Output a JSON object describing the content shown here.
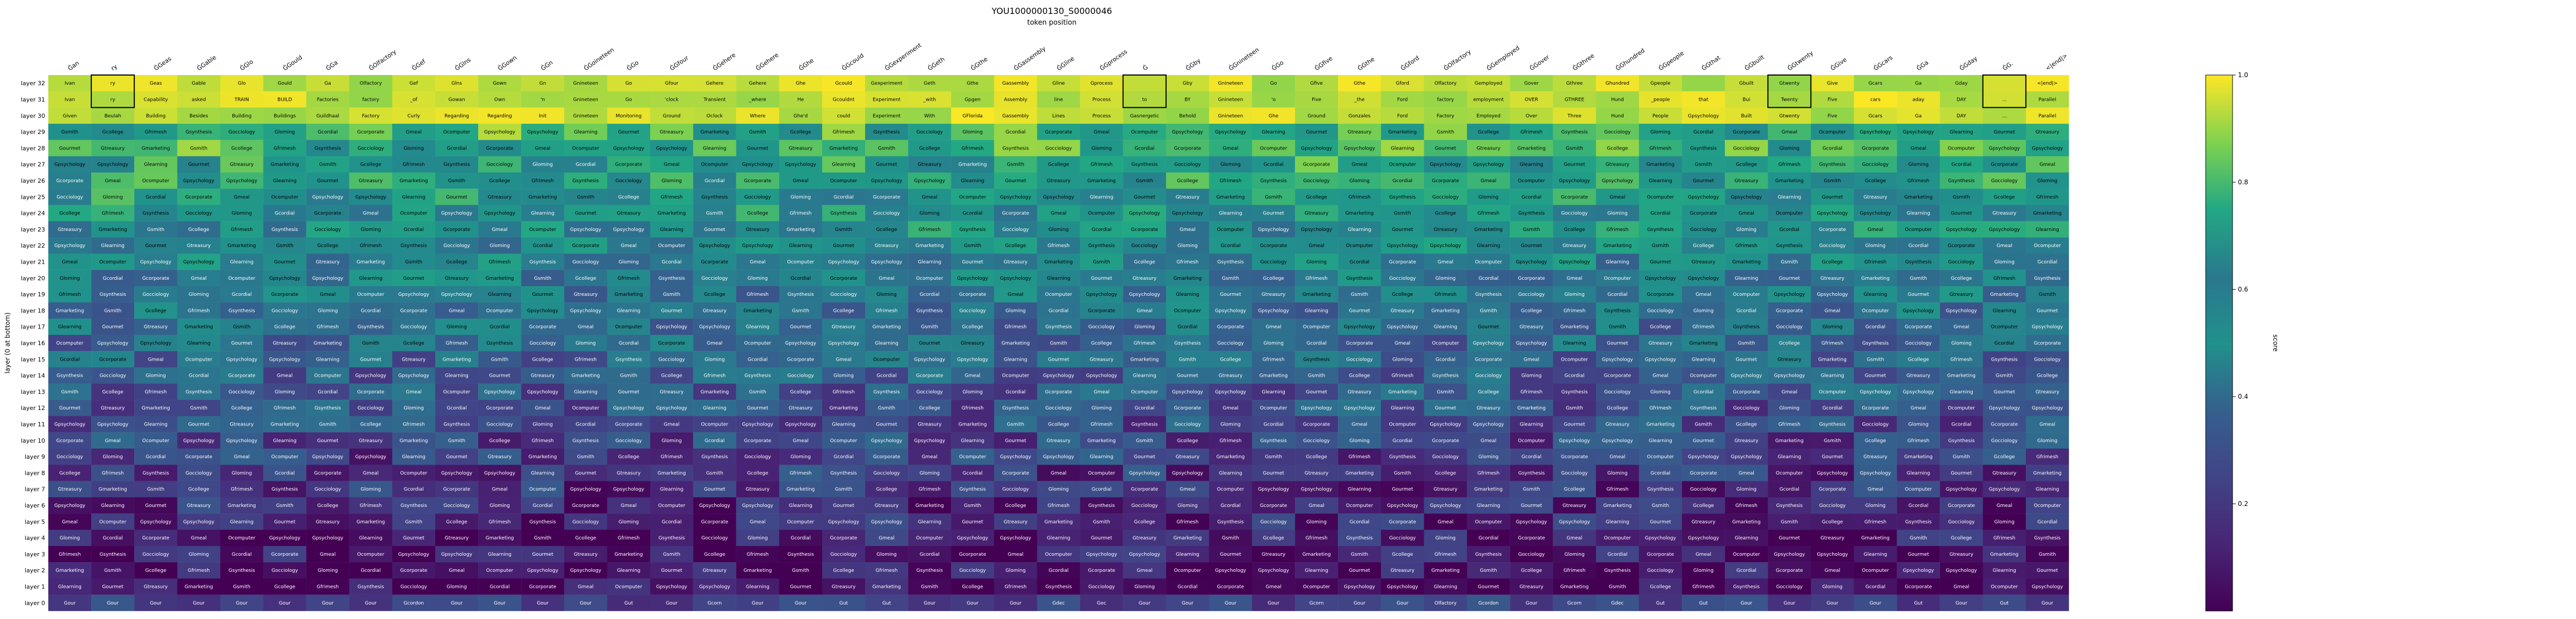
{
  "chart_data": {
    "type": "heatmap",
    "title": "YOU1000000130_S0000046",
    "subtitle": "token position",
    "ylabel": "layer (0 at bottom)",
    "colorbar": {
      "label": "score",
      "range": [
        0.0,
        1.0
      ],
      "ticks": [
        "0.2",
        "0.4",
        "0.6",
        "0.8",
        "1.0"
      ],
      "colormap": "viridis"
    },
    "x_tokens": [
      "Ġan",
      "ry",
      "ĠGeas",
      "ĠGable",
      "ĠGlo",
      "ĠGould",
      "ĠGa",
      "ĠOlfactory",
      "ĠGef",
      "ĠGlns",
      "ĠGown",
      "ĠGn",
      "ĠGoineteen",
      "ĠGo",
      "ĠGfour",
      "ĠGehere",
      "ĠGehere",
      "ĠGhe",
      "ĠGcould",
      "ĠGexperiment",
      "ĠGeth",
      "ĠGthe",
      "ĠGassembly",
      "ĠGline",
      "ĠGprocess",
      "Ġ",
      "ĠGby",
      "ĠGnineteen",
      "ĠGo",
      "ĠGfive",
      "ĠGthe",
      "ĠGford",
      "ĠOlfactory",
      "ĠGemployed",
      "ĠGover",
      "ĠGthree",
      "ĠGhundred",
      "ĠGpeople",
      "ĠGthat",
      "ĠGbuilt",
      "ĠGtwenty",
      "ĠGive",
      "ĠGcars",
      "ĠGa",
      "ĠGday",
      "ĠG.",
      "<|end|>"
    ],
    "y_layers": [
      "layer 32",
      "layer 31",
      "layer 30",
      "layer 29",
      "layer 28",
      "layer 27",
      "layer 26",
      "layer 25",
      "layer 24",
      "layer 23",
      "layer 22",
      "layer 21",
      "layer 20",
      "layer 19",
      "layer 18",
      "layer 17",
      "layer 16",
      "layer 15",
      "layer 14",
      "layer 13",
      "layer 12",
      "layer 11",
      "layer 10",
      "layer 9",
      "layer 8",
      "layer 7",
      "layer 6",
      "layer 5",
      "layer 4",
      "layer 3",
      "layer 2",
      "layer 1",
      "layer 0"
    ],
    "cell_text_rows": {
      "layer 32": [
        "Ivan",
        "ry",
        "Geas",
        "Gable",
        "Glo",
        "Gould",
        "Ga",
        "Olfactory",
        "Gef",
        "Glns",
        "Gown",
        "Gn",
        "Gnineteen",
        "Go",
        "Gfour",
        "Gehere",
        "Gehere",
        "Ghe",
        "Gcould",
        "Gexperiment",
        "Geth",
        "Gthe",
        "Gassembly",
        "Gline",
        "Gprocess",
        "",
        "Gby",
        "Gnineteen",
        "Go",
        "Gfive",
        "Gthe",
        "Gford",
        "Olfactory",
        "Gemployed",
        "Gover",
        "Gthree",
        "Ghundred",
        "Gpeople",
        "",
        "Gbuilt",
        "Gtwenty",
        "Give",
        "Gcars",
        "Ga",
        "Gday",
        "",
        "<|end|>"
      ],
      "layer 31": [
        "Ivan",
        "ry",
        "Capability",
        "asked",
        "TRAIN",
        "BUILD",
        "Factories",
        "factory",
        "_of",
        "Gowan",
        "Own",
        "'n",
        "Gnineteen",
        "Go",
        "'clock",
        "Transient",
        "_where",
        "He",
        "Gcouldnt",
        "Experiment",
        "_with",
        "Gpgen",
        "Assembly",
        "line",
        "Process",
        "to",
        "BY",
        "Gnineteen",
        "'o",
        "Five",
        "_the",
        "Ford",
        "factory",
        "employment",
        "OVER",
        "GTHREE",
        "Hund",
        "_people",
        "that",
        "Bui",
        "Twenty",
        "Five",
        "cars",
        "aday",
        "DAY",
        "...",
        "Parallel"
      ],
      "layer 30": [
        "Given",
        "Beulah",
        "Building",
        "Besides",
        "Building",
        "Buildings",
        "Guildhaal",
        "Factory",
        "Curly",
        "Regarding",
        "Regarding",
        "Init",
        "Gnineteen",
        "Monitoring",
        "Ground",
        "Oclock",
        "Where",
        "Ghe'd",
        "could",
        "Experiment",
        "With",
        "GFlorida",
        "Gassembly",
        "Lines",
        "Process",
        "Gasnergetic",
        "Behold",
        "Gnineteen",
        "Ghe",
        "Ground",
        "Gonzales",
        "Ford",
        "Factory",
        "Employed",
        "Over",
        "Three",
        "Hund",
        "People",
        "Gpsychology",
        "Built",
        "Gtwenty",
        "Five",
        "Gcars",
        "Ga",
        "DAY",
        "...",
        "Parallel"
      ]
    },
    "example_cells_from_lower_layers": [
      "Ocomputer",
      "Gocciology",
      "Gmarketing",
      "Gpsychology",
      "Gloming",
      "Gsmith",
      "Gpsychology",
      "Gcordial",
      "Gcollege",
      "Glearning",
      "Gcorporate",
      "Gfrimesh",
      "Gourmet",
      "Gmeal",
      "Gsynthesis",
      "Gtreasury"
    ],
    "layer0_tokens": [
      "Gour",
      "Gour",
      "Gour",
      "Gour",
      "Gour",
      "Gour",
      "Gour",
      "Gour",
      "Gcordon",
      "Gour",
      "Gour",
      "Gour",
      "Gour",
      "Gut",
      "Gour",
      "Gcorn",
      "Gour",
      "Gour",
      "Gut",
      "Gut",
      "Gour",
      "Gour",
      "Gour",
      "Gdec",
      "Gec",
      "Gour",
      "Gour",
      "Gour",
      "Gour",
      "Gcorn",
      "Gour",
      "Gour",
      "Olfactory",
      "Gcordon",
      "Gour",
      "Gcorn",
      "Gdec",
      "Gut",
      "Gut",
      "Gour",
      "Gour",
      "Gour",
      "Gour",
      "Gut",
      "Gour",
      "Gut",
      "Gour"
    ]
  }
}
